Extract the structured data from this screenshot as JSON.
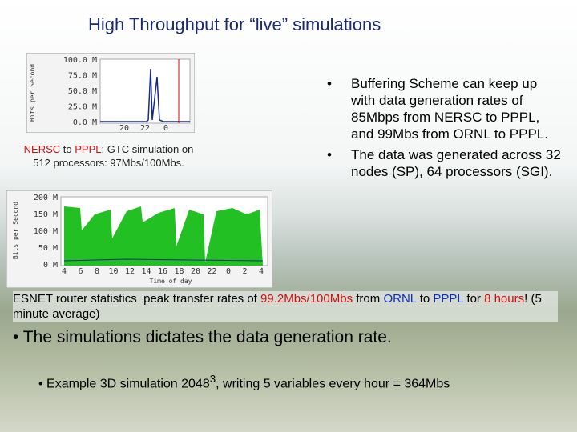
{
  "title": "High Throughput for “live” simulations",
  "chart_top": {
    "y_label": "Bits per Second",
    "y_ticks": [
      "100.0 M",
      "75.0 M",
      "50.0 M",
      "25.0 M",
      "0.0 M"
    ],
    "x_ticks": [
      "20",
      "22",
      "0"
    ]
  },
  "caption": [
    "NERSC",
    " to ",
    "PPPL",
    ": GTC simulation on 512 processors: 97Mbs/100Mbs."
  ],
  "chart_bottom": {
    "y_label": "Bits per Second",
    "x_label": "Time of day",
    "y_ticks": [
      "200 M",
      "150 M",
      "100 M",
      "50 M",
      "0 M"
    ],
    "x_ticks": [
      "4",
      "6",
      "8",
      "10",
      "12",
      "14",
      "16",
      "18",
      "20",
      "22",
      "0",
      "2",
      "4"
    ]
  },
  "bullets": [
    "Buffering Scheme can keep up with data generation rates of 85Mbps from NERSC to PPPL, and 99Mbs from ORNL to PPPL.",
    "The data was generated across 32 nodes (SP), 64 processors (SGI)."
  ],
  "esnet": [
    "ESNET router statistics  peak transfer rates of ",
    "99.2Mbs/100Mbs",
    " from ",
    "ORNL",
    " to ",
    "PPPL",
    " for ",
    "8 hours",
    "! (5 minute average)"
  ],
  "main_point": "• The simulations dictates the data generation rate.",
  "sub_point": {
    "before": "• Example 3D simulation 2048",
    "sup": "3",
    "after": ", writing 5 variables every hour = 364Mbs"
  }
}
